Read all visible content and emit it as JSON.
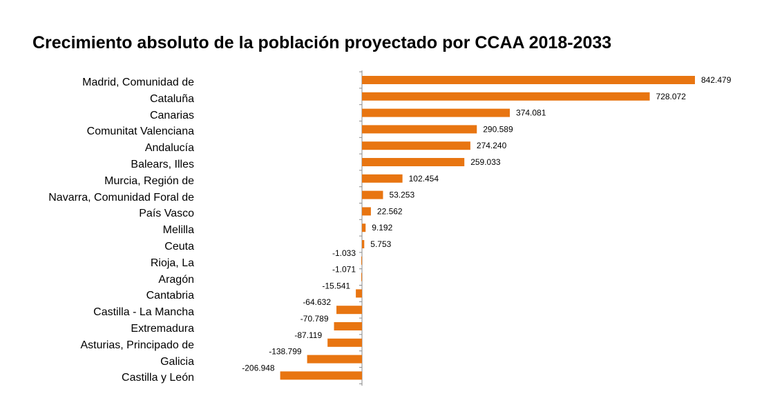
{
  "chart_data": {
    "type": "bar",
    "orientation": "horizontal",
    "title": "Crecimiento absoluto de la población proyectado por CCAA 2018-2033",
    "bar_color": "#E87511",
    "categories": [
      "Madrid, Comunidad de",
      "Cataluña",
      "Canarias",
      "Comunitat Valenciana",
      "Andalucía",
      "Balears, Illes",
      "Murcia, Región de",
      "Navarra, Comunidad Foral de",
      "País Vasco",
      "Melilla",
      "Ceuta",
      "Rioja, La",
      "Aragón",
      "Cantabria",
      "Castilla - La Mancha",
      "Extremadura",
      "Asturias, Principado de",
      "Galicia",
      "Castilla y León"
    ],
    "values": [
      842479,
      728072,
      374081,
      290589,
      274240,
      259033,
      102454,
      53253,
      22562,
      9192,
      5753,
      -1033,
      -1071,
      -15541,
      -64632,
      -70789,
      -87119,
      -138799,
      -206948
    ],
    "value_labels": [
      "842.479",
      "728.072",
      "374.081",
      "290.589",
      "274.240",
      "259.033",
      "102.454",
      "53.253",
      "22.562",
      "9.192",
      "5.753",
      "-1.033",
      "-1.071",
      "-15.541",
      "-64.632",
      "-70.789",
      "-87.119",
      "-138.799",
      "-206.948"
    ],
    "xlim": [
      -210000,
      850000
    ],
    "grid": false,
    "legend": "none"
  }
}
